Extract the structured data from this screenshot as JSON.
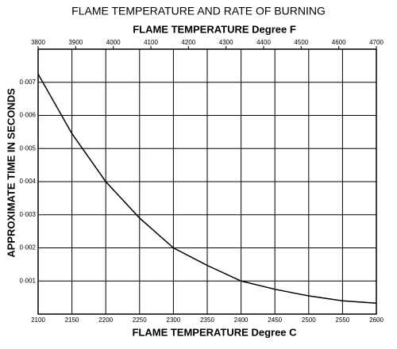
{
  "chart_data": {
    "type": "line",
    "title": "FLAME TEMPERATURE AND RATE OF BURNING",
    "x2label": "FLAME TEMPERATURE Degree F",
    "xlabel": "FLAME TEMPERATURE Degree C",
    "ylabel": "APPROXIMATE TIME IN SECONDS",
    "x": [
      2100,
      2150,
      2200,
      2250,
      2300,
      2350,
      2400,
      2450,
      2500,
      2550,
      2600
    ],
    "values": [
      0.00725,
      0.00545,
      0.004,
      0.0029,
      0.002,
      0.00147,
      0.001,
      0.00075,
      0.00055,
      0.0004,
      0.00033
    ],
    "color": "#000000",
    "xlim": [
      2100,
      2600
    ],
    "xticks": [
      2100,
      2150,
      2200,
      2250,
      2300,
      2350,
      2400,
      2450,
      2500,
      2550,
      2600
    ],
    "x2lim": [
      3800,
      4700
    ],
    "x2ticks": [
      3800,
      3900,
      4000,
      4100,
      4200,
      4300,
      4400,
      4500,
      4600,
      4700
    ],
    "ylim": [
      0,
      0.008
    ],
    "yticks": [
      {
        "value": 0.001,
        "label": "0·001"
      },
      {
        "value": 0.002,
        "label": "0·002"
      },
      {
        "value": 0.003,
        "label": "0·003"
      },
      {
        "value": 0.004,
        "label": "0·004"
      },
      {
        "value": 0.005,
        "label": "0·005"
      },
      {
        "value": 0.006,
        "label": "0·006"
      },
      {
        "value": 0.007,
        "label": "0·007"
      }
    ],
    "grid": true
  }
}
